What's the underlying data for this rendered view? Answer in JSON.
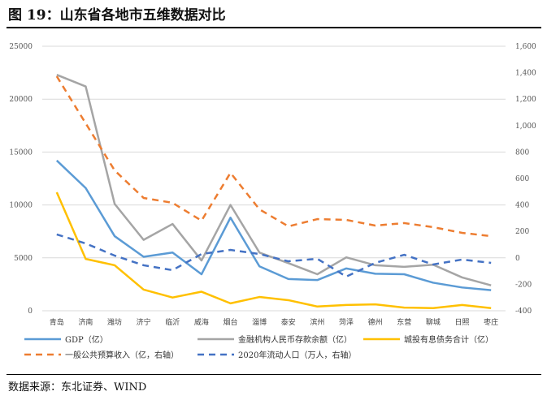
{
  "title": "图 19：山东省各地市五维数据对比",
  "source": "数据来源：东北证券、WIND",
  "chart_data": {
    "type": "line",
    "categories": [
      "青岛",
      "济南",
      "潍坊",
      "济宁",
      "临沂",
      "威海",
      "烟台",
      "淄博",
      "泰安",
      "滨州",
      "菏泽",
      "德州",
      "东营",
      "聊城",
      "日照",
      "枣庄"
    ],
    "ylim": [
      0,
      25000
    ],
    "yticks": [
      0,
      5000,
      10000,
      15000,
      20000,
      25000
    ],
    "y2lim": [
      -400,
      1600
    ],
    "y2ticks": [
      "-400",
      "-200",
      "0",
      "200",
      "400",
      "600",
      "800",
      "1,000",
      "1,200",
      "1,400",
      "1,600"
    ],
    "grid": true,
    "legend": "bottom",
    "series": [
      {
        "name": "GDP（亿）",
        "axis": "left",
        "color": "#5B9BD5",
        "dash": false,
        "values": [
          14200,
          11600,
          7050,
          5100,
          5500,
          3450,
          8800,
          4200,
          3000,
          2900,
          4000,
          3500,
          3450,
          2650,
          2200,
          1950
        ]
      },
      {
        "name": "金融机构人民币存款余额（亿）",
        "axis": "left",
        "color": "#A5A5A5",
        "dash": false,
        "values": [
          22300,
          21200,
          10100,
          6700,
          8200,
          4750,
          10000,
          5500,
          4500,
          3450,
          5050,
          4300,
          4150,
          4350,
          3150,
          2400
        ]
      },
      {
        "name": "城投有息债务合计（亿）",
        "axis": "left",
        "color": "#FFC000",
        "dash": false,
        "values": [
          11200,
          4900,
          4300,
          2000,
          1250,
          1800,
          700,
          1300,
          1000,
          400,
          550,
          600,
          300,
          250,
          550,
          250
        ]
      },
      {
        "name": "一般公共预算收入（亿，右轴）",
        "axis": "right",
        "color": "#ED7D31",
        "dash": true,
        "values": [
          1373,
          1017,
          661,
          453,
          416,
          281,
          643,
          367,
          238,
          293,
          287,
          244,
          263,
          232,
          189,
          164
        ]
      },
      {
        "name": "2020年流动人口（万人，右轴）",
        "axis": "right",
        "color": "#4472C4",
        "dash": true,
        "values": [
          177,
          109,
          17,
          -56,
          -93,
          29,
          60,
          29,
          -26,
          -7,
          -142,
          -38,
          23,
          -50,
          -13,
          -38
        ]
      }
    ]
  }
}
